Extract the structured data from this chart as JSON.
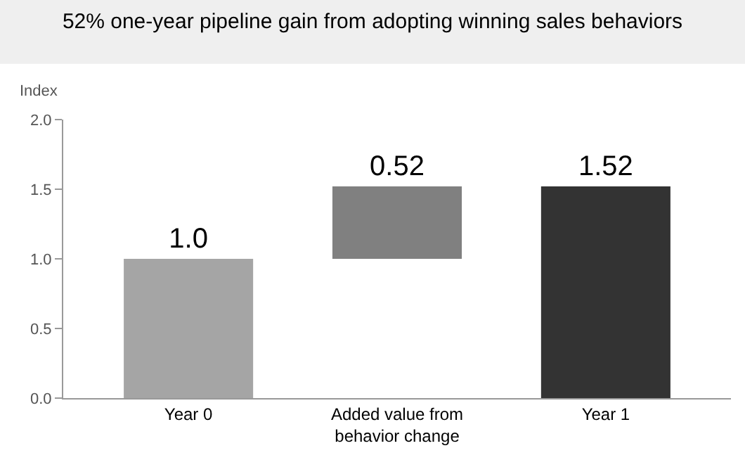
{
  "chart_data": {
    "type": "bar",
    "title": "52% one-year pipeline gain from adopting winning sales behaviors",
    "ylabel": "Index",
    "categories": [
      "Year 0",
      "Added value from\nbehavior change",
      "Year 1"
    ],
    "values": [
      1.0,
      0.52,
      1.52
    ],
    "base": [
      0,
      1.0,
      0
    ],
    "colors": [
      "#a5a5a5",
      "#808080",
      "#333333"
    ],
    "value_labels": [
      "1.0",
      "0.52",
      "1.52"
    ],
    "ylim": [
      0,
      2.0
    ],
    "yticks": [
      {
        "value": 0,
        "label": "0.0"
      },
      {
        "value": 0.5,
        "label": "0.5"
      },
      {
        "value": 1.0,
        "label": "1.0"
      },
      {
        "value": 1.5,
        "label": "1.5"
      },
      {
        "value": 2.0,
        "label": "2.0"
      }
    ],
    "tick_labels": true
  }
}
